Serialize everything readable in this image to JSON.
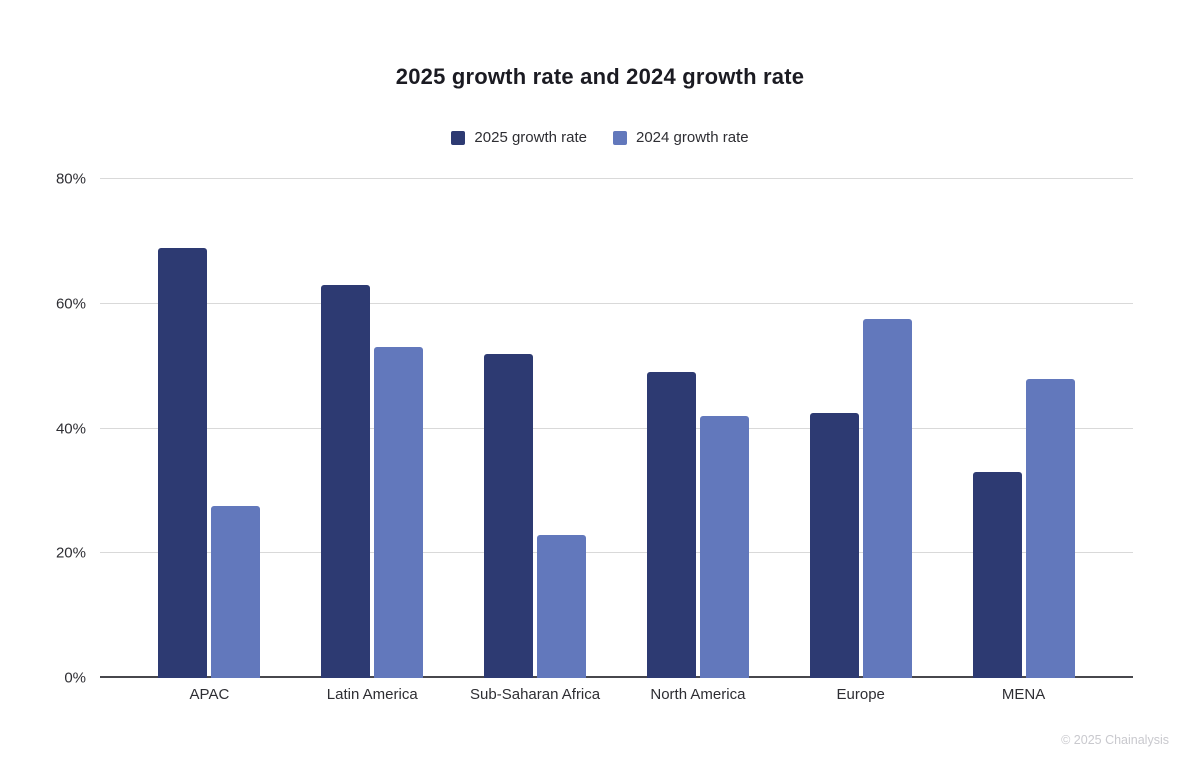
{
  "chart_data": {
    "type": "bar",
    "title": "2025 growth rate and 2024 growth rate",
    "categories": [
      "APAC",
      "Latin America",
      "Sub-Saharan Africa",
      "North America",
      "Europe",
      "MENA"
    ],
    "series": [
      {
        "name": "2025 growth rate",
        "color": "#2d3a72",
        "values": [
          69,
          63,
          52,
          49,
          42.5,
          33
        ]
      },
      {
        "name": "2024 growth rate",
        "color": "#6278bc",
        "values": [
          27.5,
          53,
          23,
          42,
          57.5,
          48
        ]
      }
    ],
    "xlabel": "",
    "ylabel": "",
    "ylim": [
      0,
      80
    ],
    "yticks": [
      0,
      20,
      40,
      60,
      80
    ],
    "ytick_labels": [
      "0%",
      "20%",
      "40%",
      "60%",
      "80%"
    ],
    "grid": "horizontal",
    "legend_position": "top"
  },
  "footer": {
    "copyright": "© 2025 Chainalysis"
  }
}
